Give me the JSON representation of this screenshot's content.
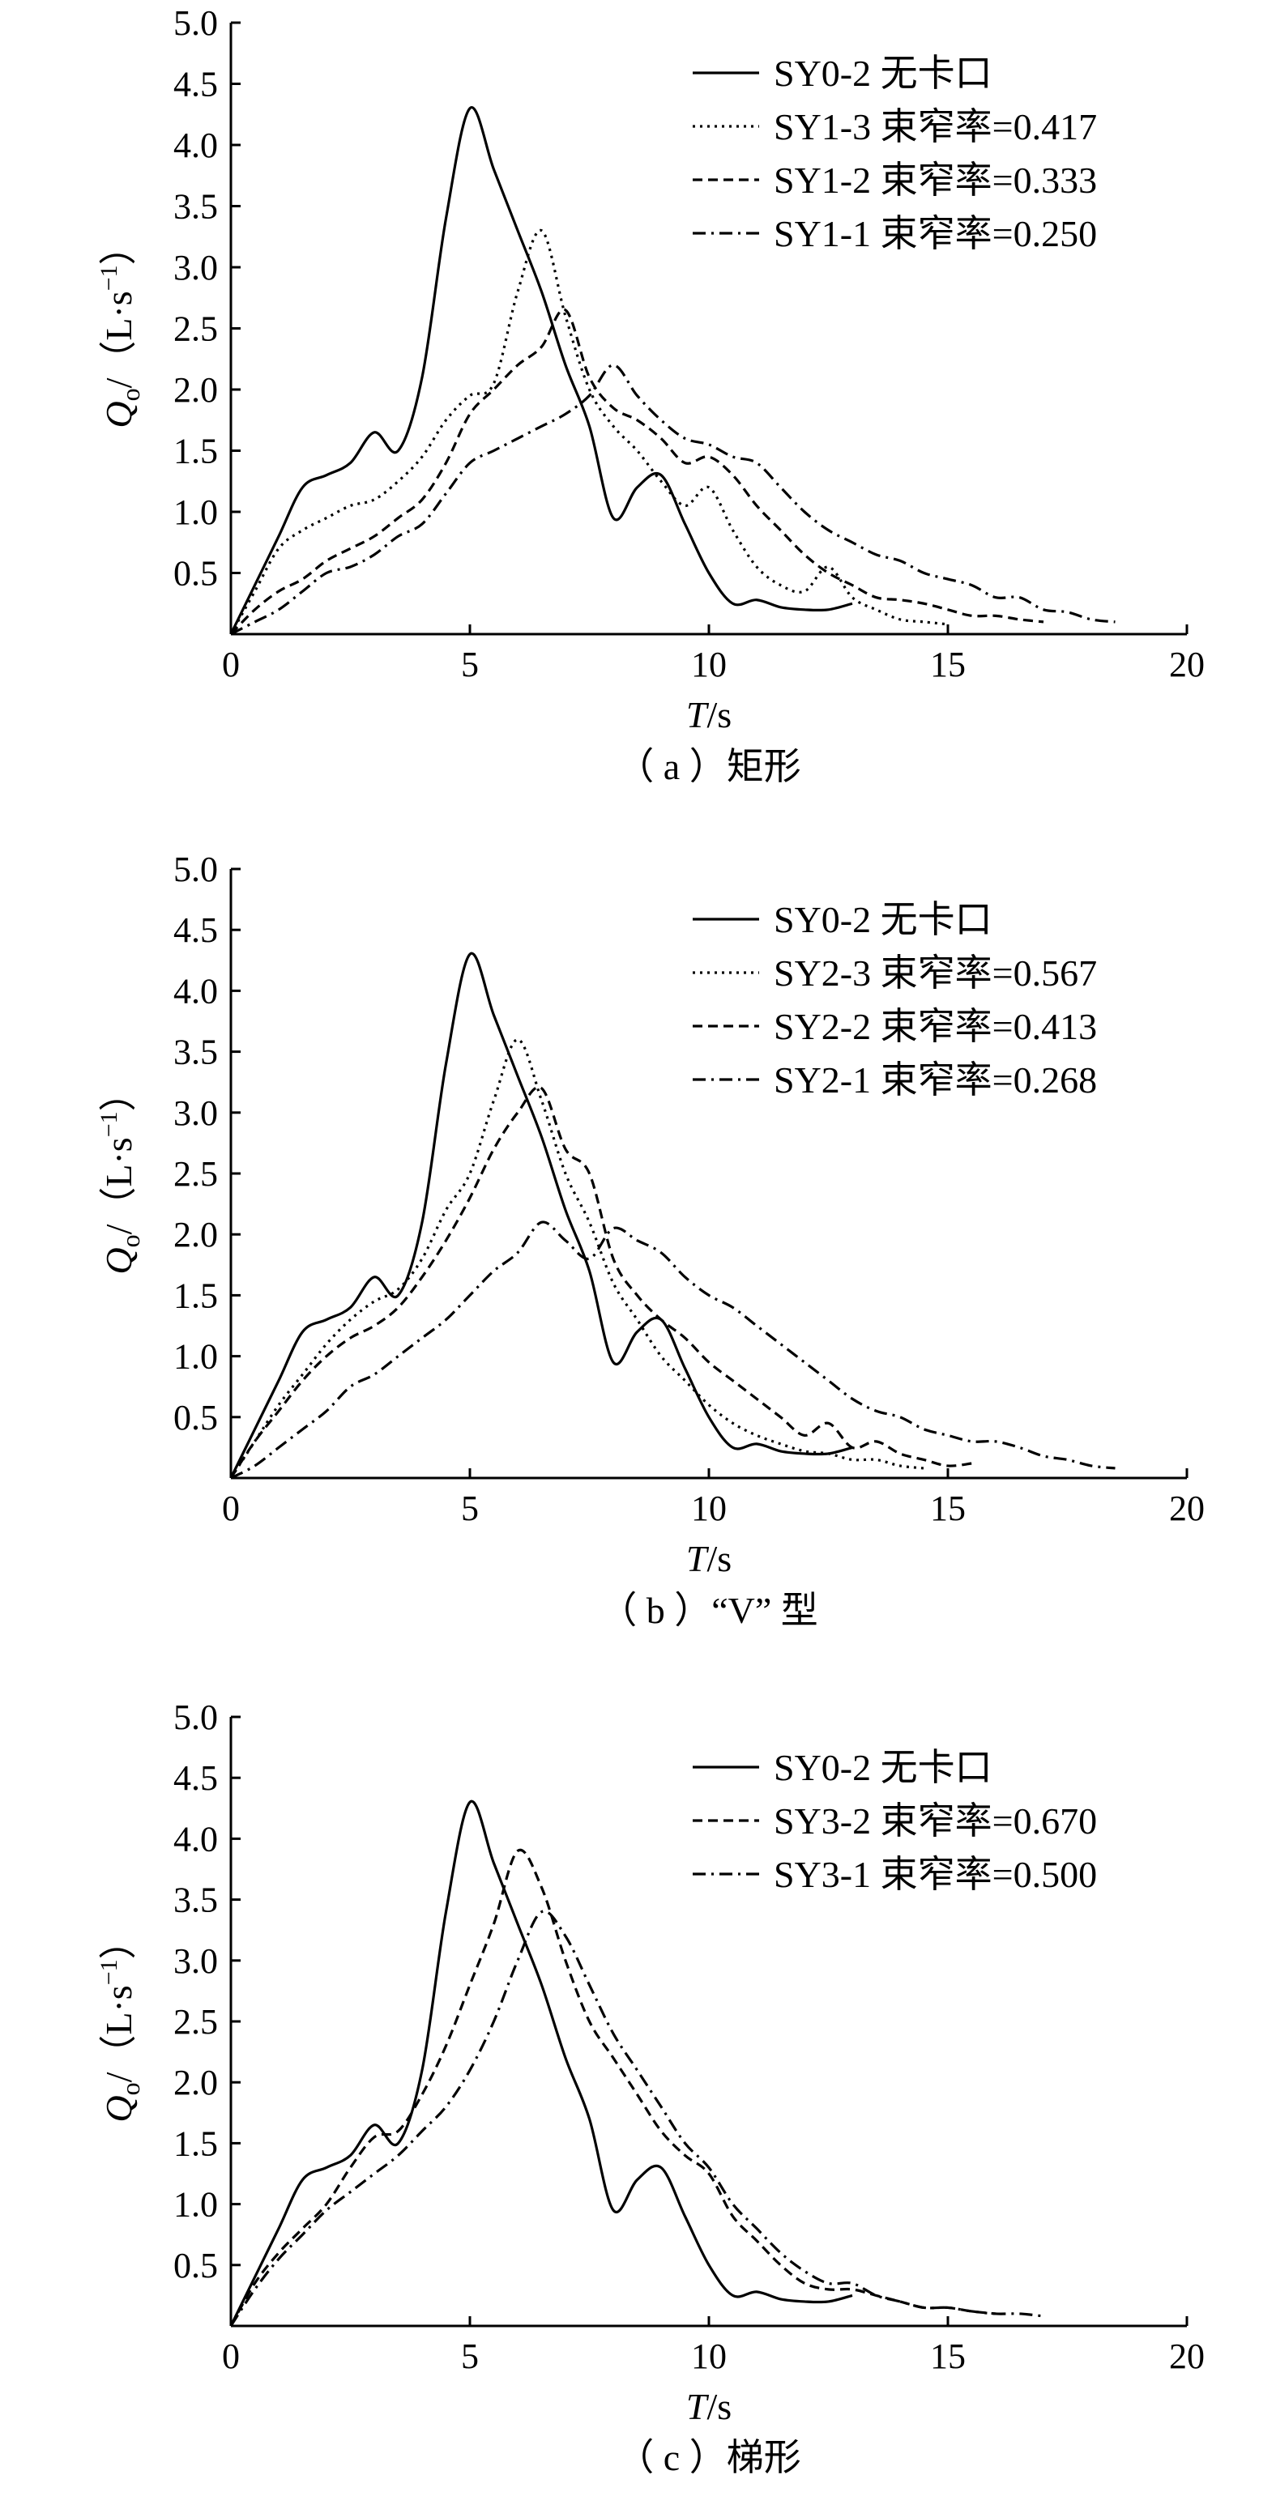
{
  "chart_data": [
    {
      "type": "line",
      "caption": "（ a ）矩形",
      "xlabel_italic": "T",
      "xlabel_unit": "/s",
      "ylabel_italic": "Q",
      "ylabel_sub": "o",
      "ylabel_unit": "/（L·s",
      "ylabel_sup": "−1",
      "ylabel_close": "）",
      "xlim": [
        0,
        20
      ],
      "ylim": [
        0,
        5.0
      ],
      "x_ticks": [
        "0",
        "5",
        "10",
        "15",
        "20"
      ],
      "y_ticks": [
        "0.5",
        "1.0",
        "1.5",
        "2.0",
        "2.5",
        "3.0",
        "3.5",
        "4.0",
        "4.5",
        "5.0"
      ],
      "legend_position": "top-right",
      "series": [
        {
          "name": "SY0-2 无卡口",
          "style": "solid",
          "x": [
            0,
            0.5,
            1,
            1.5,
            2,
            2.5,
            3,
            3.5,
            4,
            4.5,
            5,
            5.5,
            6,
            6.5,
            7,
            7.5,
            8,
            8.5,
            9,
            9.5,
            10,
            10.5,
            11,
            11.5,
            12,
            12.5,
            13
          ],
          "y": [
            0,
            0.4,
            0.8,
            1.2,
            1.3,
            1.4,
            1.65,
            1.5,
            2.1,
            3.4,
            4.3,
            3.8,
            3.3,
            2.8,
            2.2,
            1.7,
            0.95,
            1.2,
            1.3,
            0.9,
            0.5,
            0.25,
            0.28,
            0.22,
            0.2,
            0.2,
            0.25
          ]
        },
        {
          "name": "SY1-3 束窄率=0.417",
          "style": "dotted",
          "x": [
            0,
            0.5,
            1,
            1.5,
            2,
            2.5,
            3,
            3.5,
            4,
            4.5,
            5,
            5.5,
            6,
            6.5,
            7,
            7.5,
            8,
            8.5,
            9,
            9.5,
            10,
            10.5,
            11,
            11.5,
            12,
            12.5,
            13,
            13.5,
            14,
            14.5,
            15
          ],
          "y": [
            0,
            0.35,
            0.7,
            0.85,
            0.95,
            1.05,
            1.1,
            1.25,
            1.45,
            1.75,
            1.95,
            2.05,
            2.8,
            3.3,
            2.6,
            2.0,
            1.7,
            1.5,
            1.25,
            1.05,
            1.2,
            0.85,
            0.55,
            0.4,
            0.35,
            0.55,
            0.3,
            0.2,
            0.12,
            0.1,
            0.08
          ]
        },
        {
          "name": "SY1-2 束窄率=0.333",
          "style": "dashed",
          "x": [
            0,
            0.5,
            1,
            1.5,
            2,
            2.5,
            3,
            3.5,
            4,
            4.5,
            5,
            5.5,
            6,
            6.5,
            7,
            7.5,
            8,
            8.5,
            9,
            9.5,
            10,
            10.5,
            11,
            11.5,
            12,
            12.5,
            13,
            13.5,
            14,
            14.5,
            15,
            15.5,
            16,
            16.5,
            17
          ],
          "y": [
            0,
            0.2,
            0.35,
            0.45,
            0.6,
            0.7,
            0.8,
            0.95,
            1.1,
            1.4,
            1.8,
            2.0,
            2.2,
            2.35,
            2.65,
            2.1,
            1.85,
            1.75,
            1.6,
            1.4,
            1.45,
            1.3,
            1.05,
            0.85,
            0.65,
            0.5,
            0.4,
            0.3,
            0.28,
            0.25,
            0.2,
            0.15,
            0.15,
            0.12,
            0.1
          ]
        },
        {
          "name": "SY1-1 束窄率=0.250",
          "style": "dashdot",
          "x": [
            0,
            0.5,
            1,
            1.5,
            2,
            2.5,
            3,
            3.5,
            4,
            4.5,
            5,
            5.5,
            6,
            6.5,
            7,
            7.5,
            8,
            8.5,
            9,
            9.5,
            10,
            10.5,
            11,
            11.5,
            12,
            12.5,
            13,
            13.5,
            14,
            14.5,
            15,
            15.5,
            16,
            16.5,
            17,
            17.5,
            18,
            18.5
          ],
          "y": [
            0,
            0.1,
            0.2,
            0.35,
            0.5,
            0.55,
            0.65,
            0.8,
            0.9,
            1.15,
            1.4,
            1.5,
            1.6,
            1.7,
            1.8,
            1.95,
            2.2,
            1.95,
            1.75,
            1.6,
            1.55,
            1.45,
            1.4,
            1.2,
            1.0,
            0.85,
            0.75,
            0.65,
            0.6,
            0.5,
            0.45,
            0.4,
            0.3,
            0.3,
            0.2,
            0.18,
            0.12,
            0.1
          ]
        }
      ]
    },
    {
      "type": "line",
      "caption": "（ b ）“V” 型",
      "xlabel_italic": "T",
      "xlabel_unit": "/s",
      "ylabel_italic": "Q",
      "ylabel_sub": "o",
      "ylabel_unit": "/（L·s",
      "ylabel_sup": "−1",
      "ylabel_close": "）",
      "xlim": [
        0,
        20
      ],
      "ylim": [
        0,
        5.0
      ],
      "x_ticks": [
        "0",
        "5",
        "10",
        "15",
        "20"
      ],
      "y_ticks": [
        "0.5",
        "1.0",
        "1.5",
        "2.0",
        "2.5",
        "3.0",
        "3.5",
        "4.0",
        "4.5",
        "5.0"
      ],
      "legend_position": "top-right",
      "series": [
        {
          "name": "SY0-2 无卡口",
          "style": "solid",
          "x": [
            0,
            0.5,
            1,
            1.5,
            2,
            2.5,
            3,
            3.5,
            4,
            4.5,
            5,
            5.5,
            6,
            6.5,
            7,
            7.5,
            8,
            8.5,
            9,
            9.5,
            10,
            10.5,
            11,
            11.5,
            12,
            12.5,
            13
          ],
          "y": [
            0,
            0.4,
            0.8,
            1.2,
            1.3,
            1.4,
            1.65,
            1.5,
            2.1,
            3.4,
            4.3,
            3.8,
            3.3,
            2.8,
            2.2,
            1.7,
            0.95,
            1.2,
            1.3,
            0.9,
            0.5,
            0.25,
            0.28,
            0.22,
            0.2,
            0.2,
            0.25
          ]
        },
        {
          "name": "SY2-3 束窄率=0.567",
          "style": "dotted",
          "x": [
            0,
            0.5,
            1,
            1.5,
            2,
            2.5,
            3,
            3.5,
            4,
            4.5,
            5,
            5.5,
            6,
            6.5,
            7,
            7.5,
            8,
            8.5,
            9,
            9.5,
            10,
            10.5,
            11,
            11.5,
            12,
            12.5,
            13,
            13.5,
            14,
            14.5
          ],
          "y": [
            0,
            0.3,
            0.6,
            0.85,
            1.1,
            1.3,
            1.45,
            1.55,
            1.8,
            2.2,
            2.5,
            3.1,
            3.6,
            3.1,
            2.5,
            2.1,
            1.6,
            1.3,
            1.0,
            0.8,
            0.6,
            0.45,
            0.35,
            0.28,
            0.22,
            0.2,
            0.15,
            0.15,
            0.1,
            0.08
          ]
        },
        {
          "name": "SY2-2 束窄率=0.413",
          "style": "dashed",
          "x": [
            0,
            0.5,
            1,
            1.5,
            2,
            2.5,
            3,
            3.5,
            4,
            4.5,
            5,
            5.5,
            6,
            6.5,
            7,
            7.5,
            8,
            8.5,
            9,
            9.5,
            10,
            10.5,
            11,
            11.5,
            12,
            12.5,
            13,
            13.5,
            14,
            14.5,
            15,
            15.5
          ],
          "y": [
            0,
            0.3,
            0.55,
            0.8,
            1.0,
            1.15,
            1.25,
            1.4,
            1.65,
            1.95,
            2.3,
            2.7,
            3.0,
            3.2,
            2.7,
            2.5,
            1.8,
            1.5,
            1.3,
            1.15,
            0.95,
            0.8,
            0.65,
            0.5,
            0.35,
            0.45,
            0.25,
            0.3,
            0.2,
            0.15,
            0.1,
            0.12
          ]
        },
        {
          "name": "SY2-1 束窄率=0.268",
          "style": "dashdot",
          "x": [
            0,
            0.5,
            1,
            1.5,
            2,
            2.5,
            3,
            3.5,
            4,
            4.5,
            5,
            5.5,
            6,
            6.5,
            7,
            7.5,
            8,
            8.5,
            9,
            9.5,
            10,
            10.5,
            11,
            11.5,
            12,
            12.5,
            13,
            13.5,
            14,
            14.5,
            15,
            15.5,
            16,
            16.5,
            17,
            17.5,
            18,
            18.5
          ],
          "y": [
            0,
            0.1,
            0.25,
            0.4,
            0.55,
            0.75,
            0.85,
            1.0,
            1.15,
            1.3,
            1.5,
            1.7,
            1.85,
            2.1,
            1.95,
            1.8,
            2.05,
            1.95,
            1.85,
            1.65,
            1.5,
            1.4,
            1.25,
            1.1,
            0.95,
            0.8,
            0.65,
            0.55,
            0.5,
            0.4,
            0.35,
            0.3,
            0.3,
            0.25,
            0.18,
            0.15,
            0.1,
            0.08
          ]
        }
      ]
    },
    {
      "type": "line",
      "caption": "（ c ）梯形",
      "xlabel_italic": "T",
      "xlabel_unit": "/s",
      "ylabel_italic": "Q",
      "ylabel_sub": "o",
      "ylabel_unit": "/（L·s",
      "ylabel_sup": "−1",
      "ylabel_close": "）",
      "xlim": [
        0,
        20
      ],
      "ylim": [
        0,
        5.0
      ],
      "x_ticks": [
        "0",
        "5",
        "10",
        "15",
        "20"
      ],
      "y_ticks": [
        "0.5",
        "1.0",
        "1.5",
        "2.0",
        "2.5",
        "3.0",
        "3.5",
        "4.0",
        "4.5",
        "5.0"
      ],
      "legend_position": "top-right",
      "series": [
        {
          "name": "SY0-2 无卡口",
          "style": "solid",
          "x": [
            0,
            0.5,
            1,
            1.5,
            2,
            2.5,
            3,
            3.5,
            4,
            4.5,
            5,
            5.5,
            6,
            6.5,
            7,
            7.5,
            8,
            8.5,
            9,
            9.5,
            10,
            10.5,
            11,
            11.5,
            12,
            12.5,
            13
          ],
          "y": [
            0,
            0.4,
            0.8,
            1.2,
            1.3,
            1.4,
            1.65,
            1.5,
            2.1,
            3.4,
            4.3,
            3.8,
            3.3,
            2.8,
            2.2,
            1.7,
            0.95,
            1.2,
            1.3,
            0.9,
            0.5,
            0.25,
            0.28,
            0.22,
            0.2,
            0.2,
            0.25
          ]
        },
        {
          "name": "SY3-2 束窄率=0.670",
          "style": "dashed",
          "x": [
            0,
            0.5,
            1,
            1.5,
            2,
            2.5,
            3,
            3.5,
            4,
            4.5,
            5,
            5.5,
            6,
            6.5,
            7,
            7.5,
            8,
            8.5,
            9,
            9.5,
            10,
            10.5,
            11,
            11.5,
            12,
            12.5,
            13,
            13.5,
            14,
            14.5,
            15,
            15.5,
            16
          ],
          "y": [
            0,
            0.35,
            0.6,
            0.8,
            1.0,
            1.3,
            1.55,
            1.6,
            1.9,
            2.3,
            2.8,
            3.3,
            3.9,
            3.6,
            3.0,
            2.5,
            2.2,
            1.9,
            1.6,
            1.4,
            1.25,
            0.9,
            0.7,
            0.5,
            0.35,
            0.3,
            0.3,
            0.25,
            0.2,
            0.15,
            0.15,
            0.12,
            0.1
          ]
        },
        {
          "name": "SY3-1 束窄率=0.500",
          "style": "dashdot",
          "x": [
            0,
            0.5,
            1,
            1.5,
            2,
            2.5,
            3,
            3.5,
            4,
            4.5,
            5,
            5.5,
            6,
            6.5,
            7,
            7.5,
            8,
            8.5,
            9,
            9.5,
            10,
            10.5,
            11,
            11.5,
            12,
            12.5,
            13,
            13.5,
            14,
            14.5,
            15,
            15.5,
            16,
            16.5,
            17
          ],
          "y": [
            0,
            0.3,
            0.55,
            0.75,
            0.95,
            1.1,
            1.25,
            1.4,
            1.6,
            1.8,
            2.1,
            2.5,
            3.0,
            3.4,
            3.2,
            2.8,
            2.4,
            2.1,
            1.8,
            1.5,
            1.3,
            1.0,
            0.8,
            0.6,
            0.45,
            0.35,
            0.35,
            0.25,
            0.2,
            0.15,
            0.15,
            0.12,
            0.1,
            0.1,
            0.08
          ]
        }
      ]
    }
  ]
}
